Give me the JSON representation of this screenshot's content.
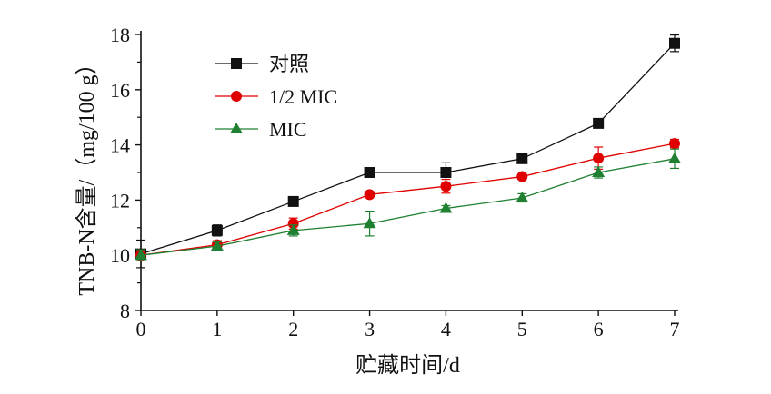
{
  "chart_data": {
    "type": "line",
    "xlabel": "贮藏时间/d",
    "ylabel": "TNB-N含量/（mg/100 g）",
    "xlim": [
      0,
      7
    ],
    "ylim": [
      8,
      18
    ],
    "x": [
      0,
      1,
      2,
      3,
      4,
      5,
      6,
      7
    ],
    "xticks": [
      "0",
      "1",
      "2",
      "3",
      "4",
      "5",
      "6",
      "7"
    ],
    "yticks": [
      "8",
      "10",
      "12",
      "14",
      "16",
      "18"
    ],
    "ytick_values": [
      8,
      10,
      12,
      14,
      16,
      18
    ],
    "grid": false,
    "legend_position": "top-left",
    "series": [
      {
        "name": "对照",
        "color": "#111111",
        "marker": "square",
        "values": [
          10.05,
          10.9,
          11.95,
          13.0,
          13.0,
          13.5,
          14.78,
          17.68
        ],
        "errors": [
          0.5,
          0.2,
          0.1,
          0.1,
          0.35,
          0.1,
          0.1,
          0.3
        ]
      },
      {
        "name": "1/2 MIC",
        "color": "#e00000",
        "marker": "circle",
        "values": [
          10.0,
          10.38,
          11.15,
          12.2,
          12.5,
          12.85,
          13.52,
          14.05
        ],
        "errors": [
          0.2,
          0.15,
          0.2,
          0.1,
          0.25,
          0.1,
          0.4,
          0.15
        ]
      },
      {
        "name": "MIC",
        "color": "#1e8030",
        "marker": "triangle",
        "values": [
          10.0,
          10.33,
          10.9,
          11.15,
          11.7,
          12.08,
          13.0,
          13.5
        ],
        "errors": [
          0.2,
          0.15,
          0.2,
          0.45,
          0.1,
          0.15,
          0.2,
          0.35
        ]
      }
    ]
  }
}
